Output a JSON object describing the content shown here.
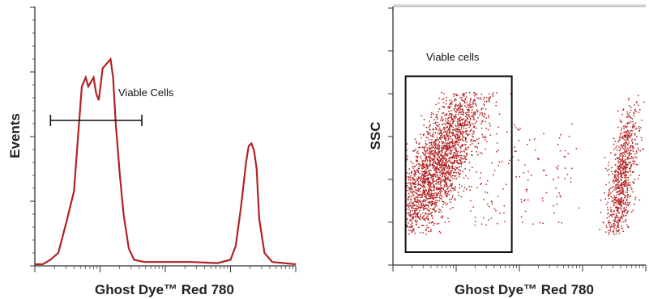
{
  "colors": {
    "curve": "#b22222",
    "axis": "#333333",
    "text": "#111111",
    "gate": "#111111"
  },
  "chart_data": [
    {
      "type": "line",
      "title": "",
      "xlabel": "Ghost Dye™ Red 780",
      "ylabel": "Events",
      "x_scale": "log",
      "y_scale": "linear",
      "tick_labels_shown": false,
      "series": [
        {
          "points": [
            [
              0.0,
              0.0
            ],
            [
              0.03,
              0.0
            ],
            [
              0.06,
              0.02
            ],
            [
              0.09,
              0.05
            ],
            [
              0.12,
              0.18
            ],
            [
              0.15,
              0.32
            ],
            [
              0.165,
              0.55
            ],
            [
              0.18,
              0.78
            ],
            [
              0.195,
              0.82
            ],
            [
              0.205,
              0.78
            ],
            [
              0.215,
              0.8
            ],
            [
              0.225,
              0.82
            ],
            [
              0.235,
              0.75
            ],
            [
              0.245,
              0.72
            ],
            [
              0.26,
              0.86
            ],
            [
              0.275,
              0.88
            ],
            [
              0.29,
              0.9
            ],
            [
              0.3,
              0.82
            ],
            [
              0.31,
              0.62
            ],
            [
              0.325,
              0.4
            ],
            [
              0.34,
              0.22
            ],
            [
              0.36,
              0.07
            ],
            [
              0.38,
              0.02
            ],
            [
              0.42,
              0.01
            ],
            [
              0.5,
              0.01
            ],
            [
              0.6,
              0.01
            ],
            [
              0.7,
              0.005
            ],
            [
              0.75,
              0.02
            ],
            [
              0.77,
              0.08
            ],
            [
              0.79,
              0.25
            ],
            [
              0.81,
              0.45
            ],
            [
              0.82,
              0.52
            ],
            [
              0.83,
              0.53
            ],
            [
              0.84,
              0.5
            ],
            [
              0.85,
              0.42
            ],
            [
              0.86,
              0.2
            ],
            [
              0.88,
              0.05
            ],
            [
              0.91,
              0.01
            ],
            [
              1.0,
              0.0
            ]
          ]
        }
      ],
      "annotations": [
        {
          "text": "Viable Cells",
          "gate_x_range": [
            0.06,
            0.41
          ]
        }
      ]
    },
    {
      "type": "scatter",
      "title": "",
      "xlabel": "Ghost Dye™ Red 780",
      "ylabel": "SSC",
      "x_scale": "log",
      "tick_labels_shown": false,
      "populations": [
        {
          "x_center": 0.17,
          "y_center": 0.38,
          "x_spread": 0.06,
          "y_spread": 0.18,
          "count": 2600,
          "slope": 0.55
        },
        {
          "x_center": 0.9,
          "y_center": 0.32,
          "x_spread": 0.025,
          "y_spread": 0.16,
          "count": 900,
          "slope": 1.8
        },
        {
          "x_center": 0.52,
          "y_center": 0.35,
          "x_spread": 0.22,
          "y_spread": 0.2,
          "count": 140,
          "slope": 0.0
        }
      ],
      "annotations": [
        {
          "text": "Viable cells",
          "gate": {
            "x": [
              0.05,
              0.47
            ],
            "y": [
              0.05,
              0.73
            ]
          }
        }
      ]
    }
  ]
}
